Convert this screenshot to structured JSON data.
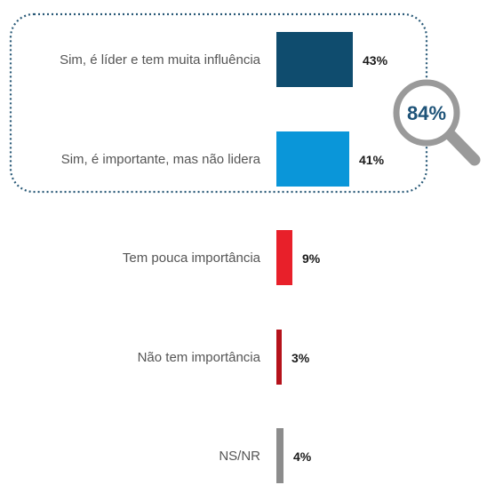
{
  "chart_data": {
    "type": "bar",
    "orientation": "horizontal",
    "categories": [
      "Sim, é líder e tem muita influência",
      "Sim, é importante, mas não lidera",
      "Tem pouca importância",
      "Não tem importância",
      "NS/NR"
    ],
    "values": [
      43,
      41,
      9,
      3,
      4
    ],
    "value_labels": [
      "43%",
      "41%",
      "9%",
      "3%",
      "4%"
    ],
    "colors": [
      "#0f4c6e",
      "#0a96d9",
      "#e8202a",
      "#b5121b",
      "#8c8c8c"
    ],
    "xlim": [
      0,
      100
    ],
    "grid": false,
    "legend": "none",
    "highlight": {
      "categories": [
        0,
        1
      ],
      "label": "84%",
      "icon": "magnifier-icon",
      "border_color": "#2a5a78",
      "text_color": "#1e5378"
    }
  }
}
